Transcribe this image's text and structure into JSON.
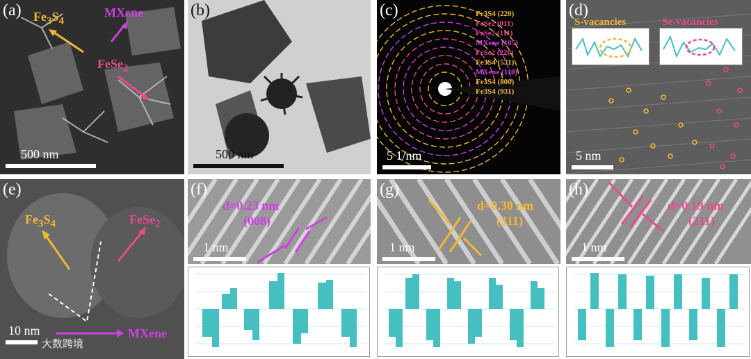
{
  "panels": {
    "a": {
      "letter": "(a)",
      "scale": "500 nm",
      "labels": {
        "fe3s4": "Fe",
        "fe3s4_sub1": "3",
        "fe3s4_mid": "S",
        "fe3s4_sub2": "4",
        "mxene": "MXene",
        "fese2": "FeSe",
        "fese2_sub": "2"
      }
    },
    "b": {
      "letter": "(b)",
      "scale": "500 nm"
    },
    "c": {
      "letter": "(c)",
      "scale": "5 1/nm",
      "rings": [
        {
          "name": "Fe3S4",
          "index": "(220)",
          "color": "#f2b835"
        },
        {
          "name": "FeSe2",
          "index": "(011)",
          "color": "#e64c8f"
        },
        {
          "name": "FeSe2",
          "index": "(111)",
          "color": "#e64c8f"
        },
        {
          "name": "MXene",
          "index": "(105)",
          "color": "#cf40e0"
        },
        {
          "name": "FeSe2",
          "index": "(220)",
          "color": "#e64c8f"
        },
        {
          "name": "Fe3S4",
          "index": "(531)",
          "color": "#f2b835"
        },
        {
          "name": "MXene",
          "index": "(110)",
          "color": "#cf40e0"
        },
        {
          "name": "Fe3S4",
          "index": "(800)",
          "color": "#f2b835"
        },
        {
          "name": "Fe3S4",
          "index": "(931)",
          "color": "#f2b835"
        }
      ]
    },
    "d": {
      "letter": "(d)",
      "scale": "5 nm",
      "s_vac": "S-vacancies",
      "se_vac": "Se-vacancies"
    },
    "e": {
      "letter": "(e)",
      "scale": "10 nm",
      "labels": {
        "fe3s4": "Fe",
        "fe3s4_sub1": "3",
        "fe3s4_mid": "S",
        "fe3s4_sub2": "4",
        "fese2": "FeSe",
        "fese2_sub": "2",
        "mxene": "MXene"
      }
    },
    "f": {
      "letter": "(f)",
      "scale": "1 nm",
      "d": "d=0.23 nm",
      "hkl": "(008)",
      "color": "#cf40e0"
    },
    "g": {
      "letter": "(g)",
      "scale": "1 nm",
      "d": "d=0.30 nm",
      "hkl": "(311)",
      "color": "#f2b835"
    },
    "h": {
      "letter": "(h)",
      "scale": "1 nm",
      "d": "d=0.19 nm",
      "hkl": "(211)",
      "color": "#e64c8f"
    }
  },
  "colors": {
    "fe3s4": "#f2b835",
    "fese2": "#e64c8f",
    "mxene": "#cf40e0",
    "profile": "#45bfbf"
  },
  "watermark": "大数跨境"
}
